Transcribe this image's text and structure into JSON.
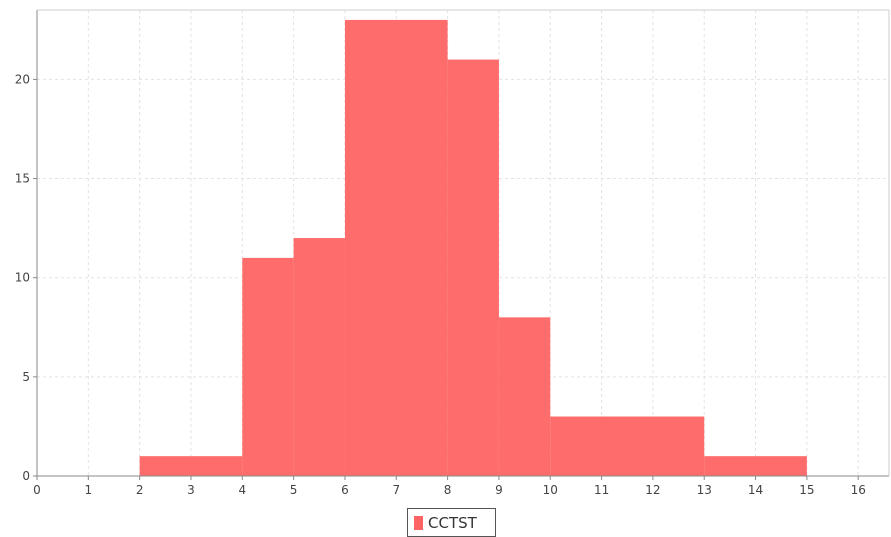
{
  "chart_data": {
    "type": "bar",
    "subtype": "histogram",
    "title": "",
    "xlabel": "",
    "ylabel": "",
    "xlim": [
      0,
      16.6
    ],
    "ylim": [
      0,
      23.5
    ],
    "x_ticks": [
      0,
      1,
      2,
      3,
      4,
      5,
      6,
      7,
      8,
      9,
      10,
      11,
      12,
      13,
      14,
      15,
      16
    ],
    "y_ticks": [
      0,
      5,
      10,
      15,
      20
    ],
    "grid": true,
    "legend_position": "bottom-center",
    "series": [
      {
        "name": "CCTST",
        "color": "#ff6464",
        "bins": [
          {
            "x0": 2,
            "x1": 4,
            "value": 1
          },
          {
            "x0": 4,
            "x1": 5,
            "value": 11
          },
          {
            "x0": 5,
            "x1": 6,
            "value": 12
          },
          {
            "x0": 6,
            "x1": 8,
            "value": 23
          },
          {
            "x0": 8,
            "x1": 9,
            "value": 21
          },
          {
            "x0": 9,
            "x1": 10,
            "value": 8
          },
          {
            "x0": 10,
            "x1": 13,
            "value": 3
          },
          {
            "x0": 13,
            "x1": 15,
            "value": 1
          }
        ]
      }
    ]
  }
}
